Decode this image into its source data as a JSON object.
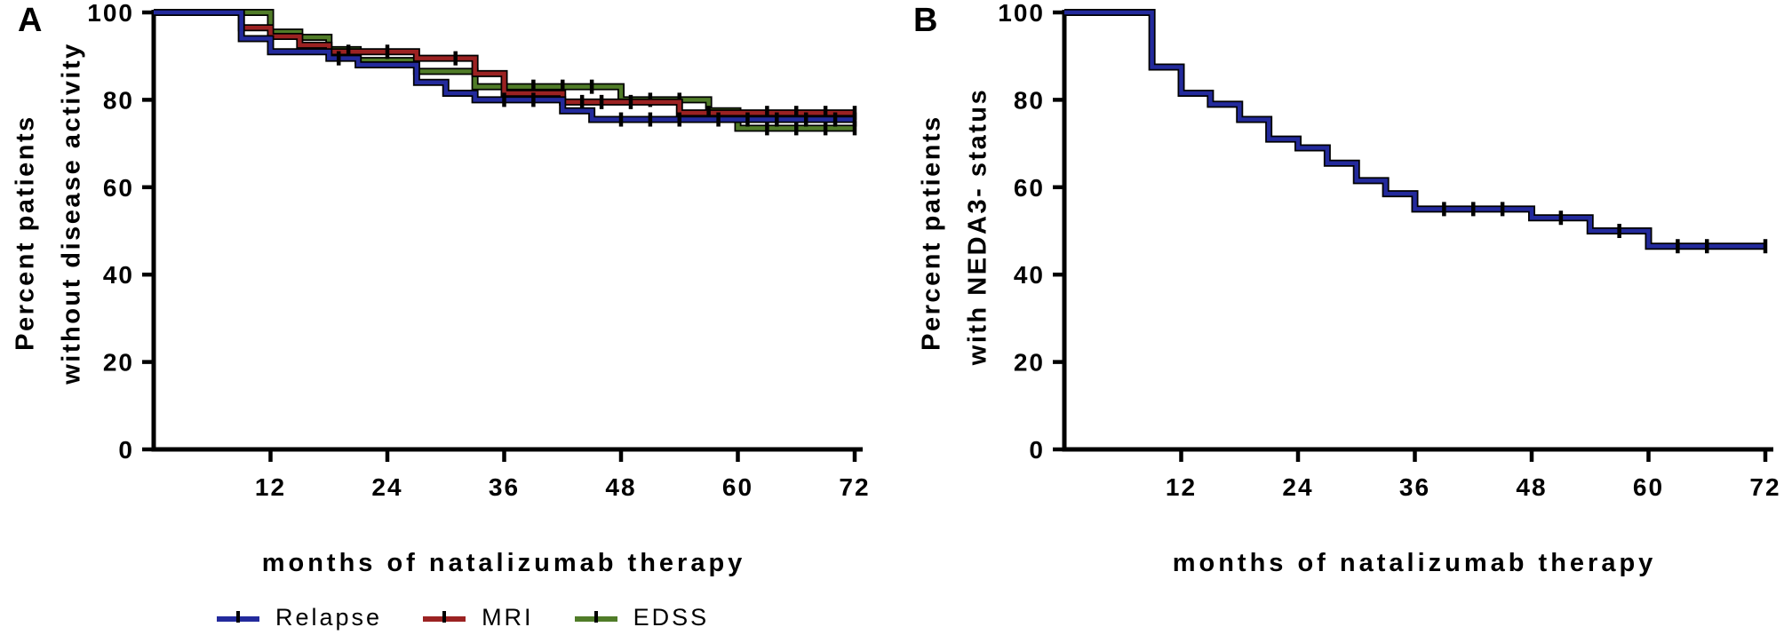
{
  "figure": {
    "background": "#ffffff",
    "axis_color": "#000000",
    "censor_mark_color": "#000000"
  },
  "panels": [
    {
      "label": "A",
      "ylabel_line1": "Percent patients",
      "ylabel_line2": "without disease activity",
      "xlabel": "months of natalizumab therapy"
    },
    {
      "label": "B",
      "ylabel_line1": "Percent patients",
      "ylabel_line2": "with NEDA3- status",
      "xlabel": "months of natalizumab therapy"
    }
  ],
  "legend": {
    "items": [
      {
        "label": "Relapse",
        "color": "#232a9c"
      },
      {
        "label": "MRI",
        "color": "#9b2222"
      },
      {
        "label": "EDSS",
        "color": "#507c28"
      }
    ]
  },
  "chart_data": [
    {
      "type": "line",
      "subtype": "kaplan-meier-step",
      "panel": "A",
      "title": "",
      "xlabel": "months of natalizumab therapy",
      "ylabel": "Percent patients without disease activity",
      "xlim": [
        0,
        72
      ],
      "ylim": [
        0,
        100
      ],
      "xticks": [
        12,
        24,
        36,
        48,
        60,
        72
      ],
      "yticks": [
        0,
        20,
        40,
        60,
        80,
        100
      ],
      "grid": false,
      "legend_position": "bottom-left",
      "series": [
        {
          "name": "Relapse",
          "color": "#232a9c",
          "steps": [
            [
              0,
              100
            ],
            [
              9,
              94
            ],
            [
              12,
              91
            ],
            [
              18,
              89.5
            ],
            [
              21,
              88
            ],
            [
              27,
              84
            ],
            [
              30,
              81.5
            ],
            [
              33,
              80
            ],
            [
              42,
              77.5
            ],
            [
              45,
              75.5
            ]
          ],
          "end_month": 72,
          "end_value": 75.5,
          "censor_months": [
            19,
            36,
            39,
            48,
            51,
            54,
            58,
            61,
            64,
            67,
            70,
            72
          ]
        },
        {
          "name": "MRI",
          "color": "#9b2222",
          "steps": [
            [
              0,
              100
            ],
            [
              9,
              96.5
            ],
            [
              12,
              94.5
            ],
            [
              15,
              92.5
            ],
            [
              18,
              91
            ],
            [
              27,
              89.5
            ],
            [
              33,
              86
            ],
            [
              36,
              81.5
            ],
            [
              42,
              79.5
            ],
            [
              54,
              77
            ]
          ],
          "end_month": 72,
          "end_value": 77,
          "censor_months": [
            20,
            24,
            31,
            44,
            46,
            49,
            57,
            63,
            66,
            69,
            72
          ]
        },
        {
          "name": "EDSS",
          "color": "#507c28",
          "steps": [
            [
              0,
              100
            ],
            [
              12,
              95.5
            ],
            [
              15,
              94.3
            ],
            [
              18,
              91.5
            ],
            [
              21,
              89
            ],
            [
              27,
              86.5
            ],
            [
              33,
              83
            ],
            [
              48,
              80
            ],
            [
              57,
              77.5
            ],
            [
              60,
              73.5
            ]
          ],
          "end_month": 72,
          "end_value": 73.5,
          "censor_months": [
            21,
            36,
            39,
            42,
            45,
            51,
            54,
            63,
            66,
            69,
            72
          ]
        }
      ]
    },
    {
      "type": "line",
      "subtype": "kaplan-meier-step",
      "panel": "B",
      "title": "",
      "xlabel": "months of natalizumab therapy",
      "ylabel": "Percent patients with NEDA3- status",
      "xlim": [
        0,
        72
      ],
      "ylim": [
        0,
        100
      ],
      "xticks": [
        12,
        24,
        36,
        48,
        60,
        72
      ],
      "yticks": [
        0,
        20,
        40,
        60,
        80,
        100
      ],
      "grid": false,
      "legend_position": "none",
      "series": [
        {
          "name": "NEDA3-",
          "color": "#232a9c",
          "steps": [
            [
              0,
              100
            ],
            [
              9,
              87.5
            ],
            [
              12,
              81.5
            ],
            [
              15,
              79
            ],
            [
              18,
              75.5
            ],
            [
              21,
              71
            ],
            [
              24,
              69
            ],
            [
              27,
              65.5
            ],
            [
              30,
              61.5
            ],
            [
              33,
              58.5
            ],
            [
              36,
              55
            ],
            [
              48,
              53
            ],
            [
              54,
              50
            ],
            [
              60,
              46.5
            ]
          ],
          "end_month": 72,
          "end_value": 46.5,
          "censor_months": [
            39,
            42,
            45,
            51,
            57,
            63,
            66,
            72
          ]
        }
      ]
    }
  ]
}
